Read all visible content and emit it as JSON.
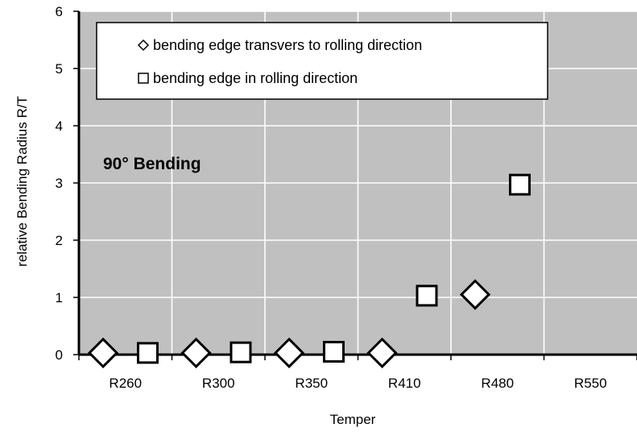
{
  "chart_data": {
    "type": "scatter",
    "categories": [
      "R260",
      "R300",
      "R350",
      "R410",
      "R480",
      "R550"
    ],
    "series": [
      {
        "name": "bending edge transvers to rolling direction",
        "marker": "diamond",
        "points": [
          {
            "category": "R260",
            "y": 0.03
          },
          {
            "category": "R300",
            "y": 0.03
          },
          {
            "category": "R350",
            "y": 0.03
          },
          {
            "category": "R410",
            "y": 0.03
          },
          {
            "category": "R480",
            "y": 1.05
          }
        ]
      },
      {
        "name": "bending edge in rolling direction",
        "marker": "square",
        "points": [
          {
            "category": "R260",
            "y": 0.03
          },
          {
            "category": "R300",
            "y": 0.04
          },
          {
            "category": "R350",
            "y": 0.05
          },
          {
            "category": "R410",
            "y": 1.03
          },
          {
            "category": "R480",
            "y": 2.97
          }
        ]
      }
    ],
    "xlabel": "Temper",
    "ylabel": "relative Bending Radius R/T",
    "ylim": [
      0,
      6
    ],
    "yticks": [
      0,
      1,
      2,
      3,
      4,
      5,
      6
    ],
    "annotation": "90° Bending",
    "legend_position": "top",
    "grid": true,
    "colors": {
      "plot_background": "#c0c0c0",
      "gridline": "#ffffff",
      "marker_fill": "#ffffff",
      "marker_stroke": "#000000",
      "axis": "#000000"
    }
  }
}
